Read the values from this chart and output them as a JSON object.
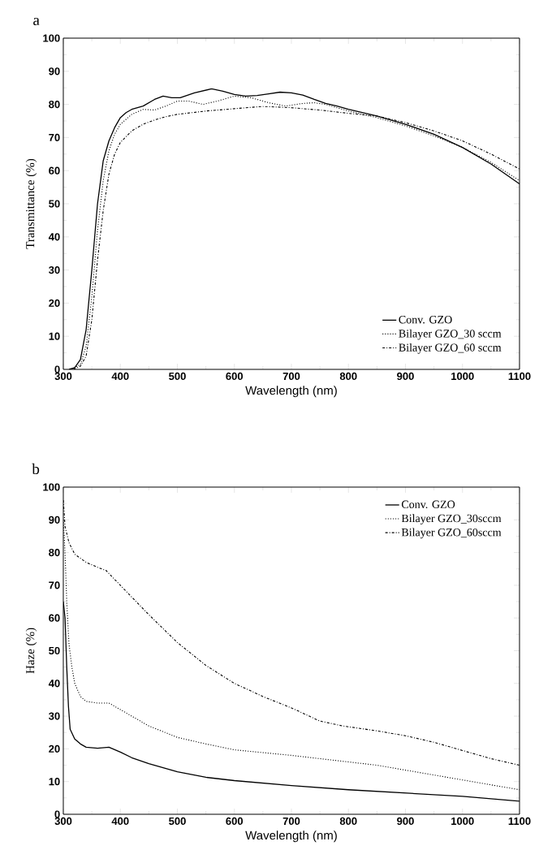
{
  "chart_data": [
    {
      "type": "line",
      "title": "a",
      "xlabel": "Wavelength (nm)",
      "ylabel": "Transmittance (%)",
      "xlim": [
        300,
        1100
      ],
      "ylim": [
        0,
        100
      ],
      "xticks": [
        300,
        400,
        500,
        600,
        700,
        800,
        900,
        1000,
        1100
      ],
      "yticks": [
        0,
        10,
        20,
        30,
        40,
        50,
        60,
        70,
        80,
        90,
        100
      ],
      "grid": false,
      "legend": "bottom right",
      "marker": "none",
      "series": [
        {
          "name": "Conv. GZO",
          "color": "#000000",
          "line_style": "solid",
          "x": [
            310,
            320,
            330,
            340,
            350,
            360,
            370,
            380,
            390,
            400,
            410,
            420,
            440,
            460,
            475,
            490,
            505,
            530,
            560,
            580,
            600,
            620,
            640,
            660,
            680,
            700,
            720,
            740,
            760,
            780,
            800,
            850,
            900,
            950,
            1000,
            1050,
            1100
          ],
          "values": [
            0,
            0.5,
            3,
            12,
            30,
            50,
            63,
            69,
            73,
            76,
            77.5,
            78.5,
            79.5,
            81.5,
            82.5,
            82,
            82,
            83.5,
            84.7,
            84,
            83,
            82.5,
            82.7,
            83.2,
            83.7,
            83.5,
            82.8,
            81.5,
            80.3,
            79.5,
            78.5,
            76.5,
            74,
            71,
            67,
            62,
            56
          ]
        },
        {
          "name": "Bilayer GZO_30 sccm",
          "color": "#000000",
          "line_style": "dotted",
          "x": [
            315,
            330,
            340,
            350,
            360,
            370,
            380,
            390,
            400,
            420,
            440,
            460,
            480,
            500,
            520,
            545,
            570,
            600,
            630,
            660,
            690,
            720,
            740,
            760,
            780,
            800,
            850,
            900,
            950,
            1000,
            1050,
            1100
          ],
          "values": [
            0,
            1.5,
            7,
            22,
            42,
            57,
            66,
            71,
            74,
            77,
            78.5,
            78.3,
            79.5,
            81,
            81,
            80,
            81,
            82.5,
            82,
            80.5,
            79.5,
            80.3,
            80.5,
            80,
            79,
            78,
            76,
            73.5,
            70.5,
            67,
            62.5,
            57
          ]
        },
        {
          "name": "Bilayer GZO_60 sccm",
          "color": "#000000",
          "line_style": "dashdot",
          "x": [
            318,
            330,
            340,
            350,
            360,
            370,
            380,
            390,
            400,
            420,
            440,
            460,
            480,
            500,
            550,
            600,
            650,
            700,
            750,
            800,
            850,
            900,
            950,
            1000,
            1050,
            1100
          ],
          "values": [
            0,
            1,
            4,
            15,
            33,
            48,
            59,
            65,
            68.5,
            72,
            74,
            75.3,
            76.3,
            77,
            78,
            78.7,
            79.4,
            79,
            78.3,
            77.3,
            76.5,
            74.5,
            72,
            69,
            65,
            60.5
          ]
        }
      ]
    },
    {
      "type": "line",
      "title": "b",
      "xlabel": "Wavelength (nm)",
      "ylabel": "Haze (%)",
      "xlim": [
        300,
        1100
      ],
      "ylim": [
        0,
        100
      ],
      "xticks": [
        300,
        400,
        500,
        600,
        700,
        800,
        900,
        1000,
        1100
      ],
      "yticks": [
        0,
        10,
        20,
        30,
        40,
        50,
        60,
        70,
        80,
        90,
        100
      ],
      "grid": false,
      "legend": "top right",
      "marker": "none",
      "series": [
        {
          "name": "Conv. GZO",
          "color": "#000000",
          "line_style": "solid",
          "x": [
            300,
            303,
            306,
            309,
            312,
            320,
            330,
            340,
            360,
            380,
            400,
            420,
            450,
            500,
            550,
            600,
            700,
            800,
            900,
            1000,
            1100
          ],
          "values": [
            65,
            60,
            45,
            33,
            26,
            23,
            21.5,
            20.5,
            20.2,
            20.5,
            19,
            17.3,
            15.5,
            13,
            11.3,
            10.3,
            8.8,
            7.5,
            6.5,
            5.5,
            4
          ]
        },
        {
          "name": "Bilayer GZO_30sccm",
          "color": "#000000",
          "line_style": "dotted",
          "x": [
            300,
            303,
            306,
            310,
            315,
            320,
            330,
            340,
            360,
            380,
            400,
            450,
            500,
            550,
            600,
            700,
            800,
            850,
            900,
            1000,
            1100
          ],
          "values": [
            90,
            80,
            65,
            52,
            45,
            40,
            36,
            34.5,
            34,
            34,
            32,
            27,
            23.5,
            21.5,
            19.7,
            18,
            16,
            15,
            13.5,
            10.5,
            7.5
          ]
        },
        {
          "name": "Bilayer GZO_60sccm",
          "color": "#000000",
          "line_style": "dashdot",
          "x": [
            300,
            303,
            310,
            320,
            340,
            360,
            375,
            400,
            450,
            500,
            550,
            600,
            650,
            700,
            750,
            790,
            850,
            900,
            950,
            1000,
            1050,
            1100
          ],
          "values": [
            96,
            88,
            83,
            79.5,
            77,
            75.5,
            74.5,
            70,
            61,
            52.5,
            45.5,
            40,
            36,
            32.5,
            28.5,
            27,
            25.5,
            24,
            22,
            19.5,
            17,
            15
          ]
        }
      ]
    }
  ]
}
